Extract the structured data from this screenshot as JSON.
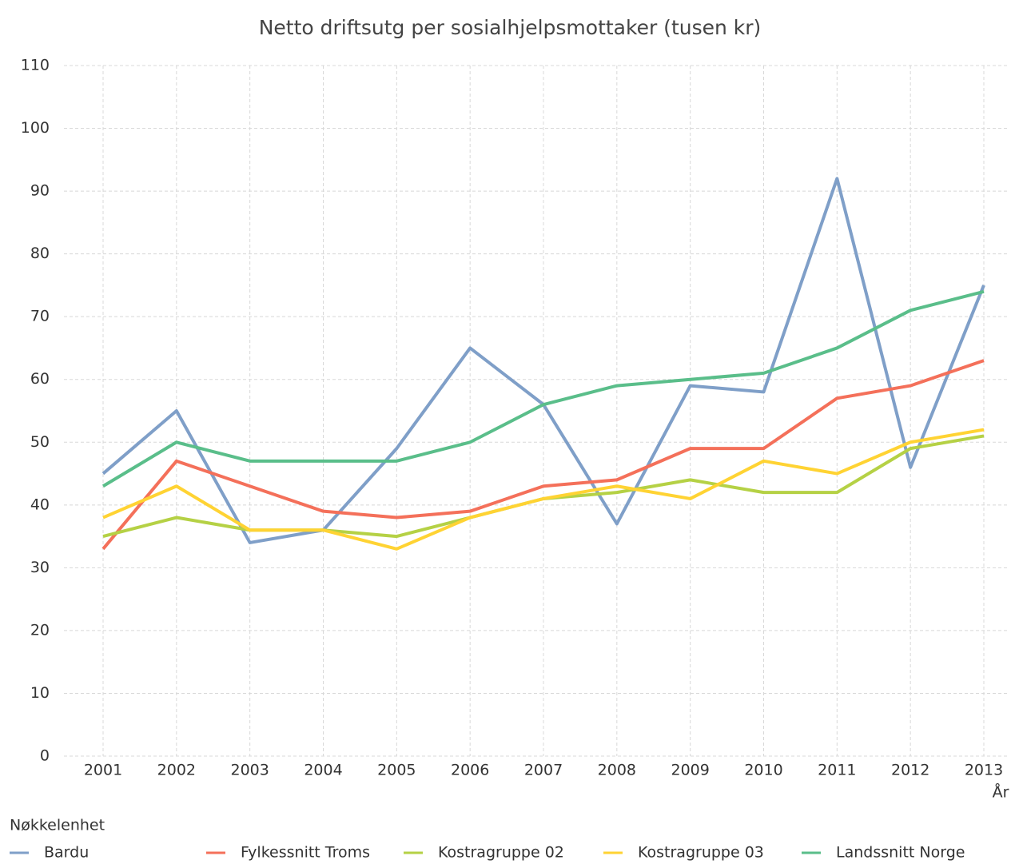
{
  "chart_data": {
    "type": "line",
    "title": "Netto driftsutg per sosialhjelpsmottaker (tusen kr)",
    "x_label": "År",
    "legend_title": "Nøkkelenhet",
    "categories": [
      "2001",
      "2002",
      "2003",
      "2004",
      "2005",
      "2006",
      "2007",
      "2008",
      "2009",
      "2010",
      "2011",
      "2012",
      "2013"
    ],
    "ylim": [
      0,
      110
    ],
    "yticks": [
      0,
      10,
      20,
      30,
      40,
      50,
      60,
      70,
      80,
      90,
      100,
      110
    ],
    "grid": true,
    "legend": "bottom",
    "series": [
      {
        "name": "Bardu",
        "color": "#7f9fc8",
        "values": [
          45,
          55,
          34,
          36,
          49,
          65,
          56,
          37,
          59,
          58,
          92,
          46,
          75
        ]
      },
      {
        "name": "Fylkessnitt Troms",
        "color": "#f4705a",
        "values": [
          33,
          47,
          43,
          39,
          38,
          39,
          43,
          44,
          49,
          49,
          57,
          59,
          63
        ]
      },
      {
        "name": "Kostragruppe 02",
        "color": "#b5d145",
        "values": [
          35,
          38,
          36,
          36,
          35,
          38,
          41,
          42,
          44,
          42,
          42,
          49,
          51
        ]
      },
      {
        "name": "Kostragruppe 03",
        "color": "#ffd333",
        "values": [
          38,
          43,
          36,
          36,
          33,
          38,
          41,
          43,
          41,
          47,
          45,
          50,
          52
        ]
      },
      {
        "name": "Landssnitt Norge",
        "color": "#5abe8a",
        "values": [
          43,
          50,
          47,
          47,
          47,
          50,
          56,
          59,
          60,
          61,
          65,
          71,
          74
        ]
      }
    ]
  }
}
